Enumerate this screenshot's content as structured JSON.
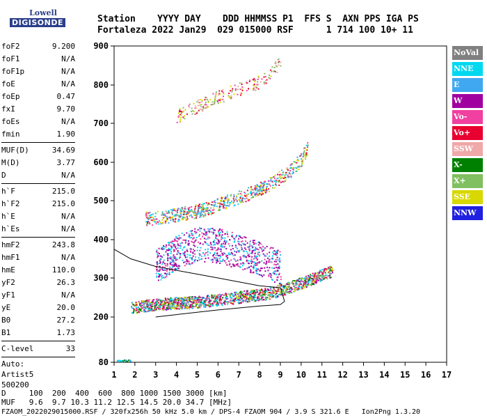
{
  "logo": {
    "line1": "Lowell",
    "line2": "DIGISONDE"
  },
  "header": {
    "line1": "Station    YYYY DAY    DDD HHMMSS P1  FFS S  AXN PPS IGA PS",
    "line2": "Fortaleza 2022 Jan29  029 015000 RSF      1 714 100 10+ 11"
  },
  "params": {
    "group1": [
      {
        "k": "foF2",
        "v": "9.200"
      },
      {
        "k": "foF1",
        "v": "N/A"
      },
      {
        "k": "foF1p",
        "v": "N/A"
      },
      {
        "k": "foE",
        "v": "N/A"
      },
      {
        "k": "foEp",
        "v": "0.47"
      },
      {
        "k": "fxI",
        "v": "9.70"
      },
      {
        "k": "foEs",
        "v": "N/A"
      },
      {
        "k": "fmin",
        "v": "1.90"
      }
    ],
    "group2": [
      {
        "k": "MUF(D)",
        "v": "34.69"
      },
      {
        "k": "M(D)",
        "v": "3.77"
      },
      {
        "k": "D",
        "v": "N/A"
      }
    ],
    "group3": [
      {
        "k": "h`F",
        "v": "215.0"
      },
      {
        "k": "h`F2",
        "v": "215.0"
      },
      {
        "k": "h`E",
        "v": "N/A"
      },
      {
        "k": "h`Es",
        "v": "N/A"
      }
    ],
    "group4": [
      {
        "k": "hmF2",
        "v": "243.8"
      },
      {
        "k": "hmF1",
        "v": "N/A"
      },
      {
        "k": "hmE",
        "v": "110.0"
      },
      {
        "k": "yF2",
        "v": "26.3"
      },
      {
        "k": "yF1",
        "v": "N/A"
      },
      {
        "k": "yE",
        "v": "20.0"
      },
      {
        "k": "B0",
        "v": "27.2"
      },
      {
        "k": "B1",
        "v": "1.73"
      }
    ],
    "group5": [
      {
        "k": "C-level",
        "v": "33"
      }
    ],
    "auto": [
      "Auto:",
      "Artist5",
      "500200"
    ]
  },
  "legend": [
    {
      "label": "NoVal",
      "color": "#808080"
    },
    {
      "label": "NNE",
      "color": "#00d8f0"
    },
    {
      "label": "E",
      "color": "#40a8f0"
    },
    {
      "label": "W",
      "color": "#a000a0"
    },
    {
      "label": "Vo-",
      "color": "#f040a0"
    },
    {
      "label": "Vo+",
      "color": "#e80030"
    },
    {
      "label": "SSW",
      "color": "#f0a8a8"
    },
    {
      "label": "X-",
      "color": "#008000"
    },
    {
      "label": "X+",
      "color": "#80c060"
    },
    {
      "label": "SSE",
      "color": "#d8d800"
    },
    {
      "label": "NNW",
      "color": "#2020e0"
    }
  ],
  "footer": {
    "line1": "D     100  200  400  600  800 1000 1500 3000 [km]",
    "line2": "MUF   9.6  9.7 10.3 11.2 12.5 14.5 20.0 34.7 [MHz]",
    "line3": "FZAOM_2022029015000.RSF / 320fx256h 50 kHz 5.0 km / DPS-4 FZAOM 904 / 3.9 S 321.6 E   Ion2Png 1.3.20"
  },
  "chart_data": {
    "type": "scatter",
    "xlabel": "",
    "ylabel": "",
    "xlim": [
      1,
      17
    ],
    "ylim": [
      80,
      900
    ],
    "x_ticks": [
      1,
      2,
      3,
      4,
      5,
      6,
      7,
      8,
      9,
      10,
      11,
      12,
      13,
      14,
      15,
      16,
      17
    ],
    "y_ticks": [
      80,
      200,
      300,
      400,
      500,
      600,
      700,
      800,
      900
    ],
    "traces": [
      {
        "name": "F-layer O trace (low)",
        "x": [
          1.8,
          2.5,
          3.5,
          4.5,
          5.5,
          6.5,
          7.5,
          8.5,
          9.0,
          9.5,
          10.0,
          10.5,
          11.0,
          11.5
        ],
        "y": [
          225,
          230,
          235,
          238,
          242,
          248,
          255,
          262,
          270,
          278,
          288,
          298,
          310,
          320
        ]
      },
      {
        "name": "2nd hop",
        "x": [
          2.5,
          3.5,
          4.5,
          5.5,
          6.5,
          7.5,
          8.5,
          9.5,
          10.0,
          10.3
        ],
        "y": [
          455,
          460,
          470,
          480,
          500,
          520,
          545,
          580,
          610,
          640
        ]
      },
      {
        "name": "3rd hop",
        "x": [
          4,
          5,
          6,
          7,
          8,
          8.5,
          9.0
        ],
        "y": [
          720,
          745,
          770,
          790,
          810,
          830,
          860
        ]
      },
      {
        "name": "Spread F",
        "x": [
          3,
          4,
          5,
          6,
          7,
          8,
          9
        ],
        "y": [
          330,
          370,
          390,
          385,
          370,
          350,
          330
        ]
      },
      {
        "name": "Sporadic near 80 km",
        "x": [
          1.1,
          1.5,
          1.8
        ],
        "y": [
          85,
          86,
          86
        ]
      }
    ],
    "profile_curve": {
      "x": [
        1.0,
        1.8,
        3,
        4,
        5,
        6,
        7,
        8,
        9.0,
        9.2,
        9.0,
        8,
        6,
        4,
        3
      ],
      "y": [
        375,
        350,
        330,
        320,
        310,
        300,
        290,
        280,
        275,
        240,
        232,
        228,
        218,
        206,
        200
      ]
    }
  }
}
